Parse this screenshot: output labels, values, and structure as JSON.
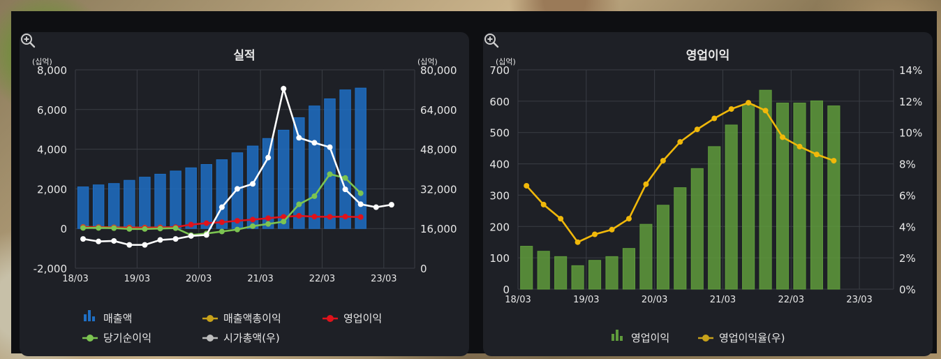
{
  "charts": [
    {
      "title": "실적",
      "left_unit": "(십억)",
      "right_unit": "(십억)",
      "left_ticks": [
        "8,000",
        "6,000",
        "4,000",
        "2,000",
        "0",
        "-2,000"
      ],
      "right_ticks": [
        "80,000",
        "64,000",
        "48,000",
        "32,000",
        "16,000",
        "0"
      ],
      "x_ticks": [
        "18/03",
        "19/03",
        "20/03",
        "21/03",
        "22/03",
        "23/03"
      ],
      "legend": [
        "매출액",
        "매출액총이익",
        "영업이익",
        "당기순이익",
        "시가총액(우)"
      ]
    },
    {
      "title": "영업이익",
      "left_unit": "(십억)",
      "left_ticks": [
        "700",
        "600",
        "500",
        "400",
        "300",
        "200",
        "100",
        "0"
      ],
      "right_ticks": [
        "14%",
        "12%",
        "10%",
        "8%",
        "6%",
        "4%",
        "2%",
        "0%"
      ],
      "x_ticks": [
        "18/03",
        "19/03",
        "20/03",
        "21/03",
        "22/03",
        "23/03"
      ],
      "legend": [
        "영업이익",
        "영업이익율(우)"
      ]
    }
  ],
  "chart_data": [
    {
      "type": "bar",
      "title": "실적",
      "x": [
        "18/03",
        "18/06",
        "18/09",
        "18/12",
        "19/03",
        "19/06",
        "19/09",
        "19/12",
        "20/03",
        "20/06",
        "20/09",
        "20/12",
        "21/03",
        "21/06",
        "21/09",
        "21/12",
        "22/03",
        "22/06",
        "22/09",
        "22/12",
        "23/03",
        "23/06"
      ],
      "ylim": [
        -2000,
        8000
      ],
      "y2lim": [
        0,
        80000
      ],
      "series": [
        {
          "name": "매출액",
          "type": "bar",
          "axis": "left",
          "color": "#1f6fc4",
          "values": [
            2100,
            2200,
            2270,
            2430,
            2590,
            2740,
            2900,
            3060,
            3230,
            3470,
            3820,
            4160,
            4540,
            4960,
            5590,
            6180,
            6540,
            6990,
            7080,
            null,
            null,
            null
          ]
        },
        {
          "name": "매출액총이익",
          "type": "line",
          "axis": "left",
          "color": "#c8a21a",
          "values": [
            80,
            70,
            60,
            50,
            50,
            55,
            60,
            null,
            null,
            null,
            null,
            null,
            null,
            null,
            null,
            null,
            null,
            null,
            null,
            null,
            null,
            null
          ]
        },
        {
          "name": "영업이익",
          "type": "line",
          "axis": "left",
          "color": "#e0131b",
          "values": [
            70,
            60,
            50,
            40,
            40,
            50,
            70,
            200,
            270,
            320,
            390,
            450,
            520,
            590,
            640,
            600,
            590,
            600,
            580,
            null,
            null,
            null
          ]
        },
        {
          "name": "당기순이익",
          "type": "line",
          "axis": "left",
          "color": "#7cc451",
          "values": [
            30,
            30,
            20,
            -20,
            -20,
            0,
            20,
            -330,
            -250,
            -150,
            -50,
            120,
            230,
            350,
            1220,
            1630,
            2740,
            2550,
            1780,
            null,
            null,
            null
          ]
        },
        {
          "name": "시가총액(우)",
          "type": "line",
          "axis": "right",
          "color": "#ffffff",
          "values": [
            11800,
            10800,
            11000,
            9400,
            9400,
            11400,
            11800,
            13000,
            13400,
            24600,
            32000,
            34000,
            44600,
            72400,
            52600,
            50600,
            48800,
            31800,
            25800,
            24600,
            25600,
            null
          ]
        }
      ]
    },
    {
      "type": "bar",
      "title": "영업이익",
      "x": [
        "18/03",
        "18/06",
        "18/09",
        "18/12",
        "19/03",
        "19/06",
        "19/09",
        "19/12",
        "20/03",
        "20/06",
        "20/09",
        "20/12",
        "21/03",
        "21/06",
        "21/09",
        "21/12",
        "22/03",
        "22/06",
        "22/09",
        "22/12",
        "23/03",
        "23/06"
      ],
      "ylim": [
        0,
        700
      ],
      "y2lim": [
        0,
        14
      ],
      "series": [
        {
          "name": "영업이익",
          "type": "bar",
          "axis": "left",
          "color": "#5f9b3c",
          "values": [
            137,
            121,
            104,
            75,
            92,
            104,
            130,
            207,
            268,
            324,
            385,
            455,
            524,
            590,
            635,
            594,
            594,
            601,
            585,
            null,
            null,
            null
          ]
        },
        {
          "name": "영업이익율(우)",
          "type": "line",
          "axis": "right",
          "color": "#f0b80a",
          "values": [
            6.6,
            5.4,
            4.5,
            3.0,
            3.5,
            3.8,
            4.5,
            6.7,
            8.2,
            9.4,
            10.2,
            10.9,
            11.5,
            11.9,
            11.4,
            9.7,
            9.1,
            8.6,
            8.2,
            null,
            null,
            null
          ]
        }
      ]
    }
  ]
}
